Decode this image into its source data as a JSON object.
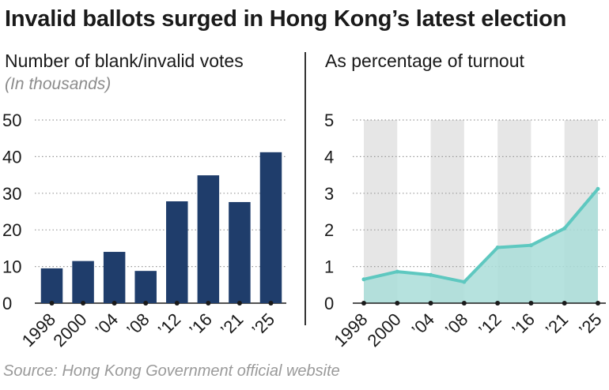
{
  "title": "Invalid ballots surged in Hong Kong’s latest election",
  "source": "Source: Hong Kong Government official website",
  "colors": {
    "bar": "#1f3d6b",
    "line": "#5ec8c0",
    "area": "#a9ddd8",
    "band": "#e6e6e6",
    "grid": "#9a9a9a"
  },
  "chart_data": [
    {
      "type": "bar",
      "title": "Number of blank/invalid votes",
      "subtitle": "(In thousands)",
      "categories": [
        "1998",
        "2000",
        "’04",
        "’08",
        "’12",
        "’16",
        "’21",
        "’25"
      ],
      "values": [
        9.5,
        11.5,
        14,
        8.8,
        27.8,
        34.9,
        27.6,
        41.2
      ],
      "yticks": [
        0,
        10,
        20,
        30,
        40,
        50
      ],
      "ylim": [
        0,
        50
      ],
      "grid": true
    },
    {
      "type": "area",
      "title": "As percentage of turnout",
      "categories": [
        "1998",
        "2000",
        "’04",
        "’08",
        "’12",
        "’16",
        "’21",
        "’25"
      ],
      "values": [
        0.65,
        0.86,
        0.77,
        0.58,
        1.52,
        1.58,
        2.04,
        3.12
      ],
      "yticks": [
        0,
        1,
        2,
        3,
        4,
        5
      ],
      "ylim": [
        0,
        5
      ],
      "grid": true,
      "shaded_bands": [
        [
          "1998",
          "2000"
        ],
        [
          "’04",
          "’08"
        ],
        [
          "’12",
          "’16"
        ],
        [
          "’21",
          "’25"
        ]
      ]
    }
  ]
}
